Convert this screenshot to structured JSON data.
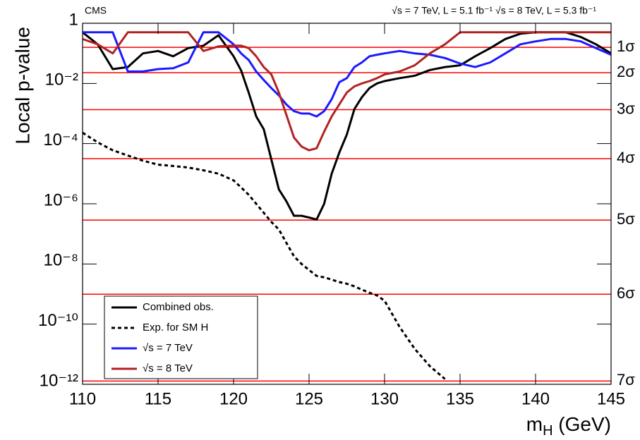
{
  "chart_data": {
    "type": "line",
    "experiment_label": "CMS",
    "energy_label": "√s = 7 TeV, L = 5.1 fb⁻¹  √s = 8 TeV, L = 5.3 fb⁻¹",
    "y_label": "Local p-value",
    "x_label_parts": [
      "m",
      "H",
      " (GeV)"
    ],
    "log_y": true,
    "x": [
      110,
      111,
      112,
      113,
      114,
      115,
      116,
      117,
      118,
      119,
      120,
      120.5,
      121,
      121.5,
      122,
      122.5,
      123,
      123.5,
      124,
      124.5,
      125,
      125.5,
      126,
      126.5,
      127,
      127.5,
      128,
      128.5,
      129,
      129.5,
      130,
      131,
      132,
      133,
      134,
      135,
      136,
      137,
      138,
      139,
      140,
      141,
      142,
      143,
      144,
      145
    ],
    "series": [
      {
        "name": "Combined  obs.",
        "color": "#000000",
        "dashed": false,
        "values": [
          0.5,
          0.2,
          0.03,
          0.035,
          0.1,
          0.12,
          0.08,
          0.15,
          0.18,
          0.4,
          0.08,
          0.027,
          0.005,
          0.0008,
          0.0003,
          3e-05,
          3e-06,
          1.2e-06,
          4e-07,
          4e-07,
          3.5e-07,
          3e-07,
          1e-06,
          1e-05,
          5e-05,
          0.0002,
          0.0014,
          0.0035,
          0.007,
          0.01,
          0.012,
          0.015,
          0.018,
          0.028,
          0.035,
          0.04,
          0.08,
          0.15,
          0.3,
          0.45,
          0.5,
          0.5,
          0.5,
          0.35,
          0.2,
          0.1
        ]
      },
      {
        "name": "Exp. for SM H",
        "color": "#000000",
        "dashed": true,
        "values": [
          0.00023,
          0.00011,
          6e-05,
          4e-05,
          2.7e-05,
          2e-05,
          1.8e-05,
          1.6e-05,
          1.3e-05,
          1e-05,
          6e-06,
          3.5e-06,
          2e-06,
          1e-06,
          5e-07,
          2.5e-07,
          1.4e-07,
          5e-08,
          1.8e-08,
          1e-08,
          6.3e-09,
          4e-09,
          3.6e-09,
          3e-09,
          2.5e-09,
          2.2e-09,
          1.8e-09,
          1.4e-09,
          1.1e-09,
          9e-10,
          6e-10,
          8e-11,
          1.5e-11,
          4e-12,
          1.5e-12,
          null,
          null,
          null,
          null,
          null,
          null,
          null,
          null,
          null,
          null,
          null
        ]
      },
      {
        "name": "√s = 7 TeV",
        "color": "#1a1aff",
        "dashed": false,
        "values": [
          0.5,
          0.5,
          0.5,
          0.025,
          0.025,
          0.03,
          0.032,
          0.05,
          0.5,
          0.5,
          0.2,
          0.1,
          0.06,
          0.025,
          0.013,
          0.007,
          0.004,
          0.002,
          0.0012,
          0.001,
          0.001,
          0.0008,
          0.0012,
          0.003,
          0.011,
          0.015,
          0.035,
          0.05,
          0.08,
          0.09,
          0.1,
          0.12,
          0.1,
          0.09,
          0.07,
          0.046,
          0.035,
          0.05,
          0.1,
          0.2,
          0.25,
          0.3,
          0.3,
          0.25,
          0.15,
          0.09
        ]
      },
      {
        "name": "√s = 8 TeV",
        "color": "#b22222",
        "dashed": false,
        "values": [
          0.3,
          0.2,
          0.1,
          0.5,
          0.5,
          0.5,
          0.5,
          0.5,
          0.12,
          0.17,
          0.18,
          0.18,
          0.15,
          0.08,
          0.035,
          0.02,
          0.005,
          0.0009,
          0.00016,
          8e-05,
          6e-05,
          7e-05,
          0.00025,
          0.0008,
          0.002,
          0.005,
          0.008,
          0.01,
          0.012,
          0.015,
          0.02,
          0.025,
          0.04,
          0.1,
          0.2,
          0.5,
          0.5,
          0.5,
          0.5,
          0.5,
          0.5,
          0.5,
          0.5,
          0.5,
          0.5,
          0.5
        ]
      }
    ],
    "sigma_color": "#ff0000",
    "sigma_lines": [
      {
        "value": 0.1587,
        "label": "1σ"
      },
      {
        "value": 0.02275,
        "label": "2σ"
      },
      {
        "value": 0.00135,
        "label": "3σ"
      },
      {
        "value": 3.17e-05,
        "label": "4σ"
      },
      {
        "value": 2.87e-07,
        "label": "5σ"
      },
      {
        "value": 9.87e-10,
        "label": "6σ"
      },
      {
        "value": 1.28e-12,
        "label": "7σ"
      }
    ],
    "xlim": [
      110,
      145
    ],
    "xticks": [
      110,
      115,
      120,
      125,
      130,
      135,
      140,
      145
    ],
    "ylim": [
      1e-12,
      1
    ],
    "yticks": [
      {
        "value": 1e-12,
        "label": "10⁻¹²"
      },
      {
        "value": 1e-10,
        "label": "10⁻¹⁰"
      },
      {
        "value": 1e-08,
        "label": "10⁻⁸"
      },
      {
        "value": 1e-06,
        "label": "10⁻⁶"
      },
      {
        "value": 0.0001,
        "label": "10⁻⁴"
      },
      {
        "value": 0.01,
        "label": "10⁻²"
      },
      1
    ],
    "legend": "lower-left"
  }
}
